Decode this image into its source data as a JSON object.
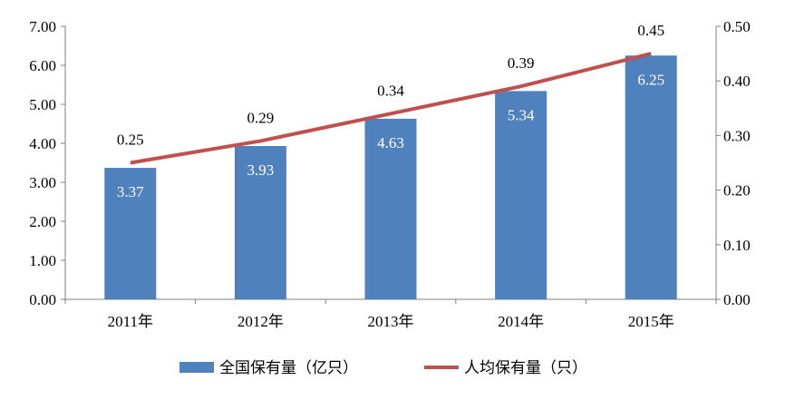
{
  "chart_data": {
    "type": "bar",
    "categories": [
      "2011年",
      "2012年",
      "2013年",
      "2014年",
      "2015年"
    ],
    "series": [
      {
        "name": "全国保有量（亿只）",
        "type": "bar",
        "axis": "left",
        "color": "#4F81BD",
        "values": [
          3.37,
          3.93,
          4.63,
          5.34,
          6.25
        ],
        "labels": [
          "3.37",
          "3.93",
          "4.63",
          "5.34",
          "6.25"
        ]
      },
      {
        "name": "人均保有量（只）",
        "type": "line",
        "axis": "right",
        "color": "#C0504D",
        "values": [
          0.25,
          0.29,
          0.34,
          0.39,
          0.45
        ],
        "labels": [
          "0.25",
          "0.29",
          "0.34",
          "0.39",
          "0.45"
        ]
      }
    ],
    "y_left": {
      "range": [
        0,
        7
      ],
      "ticks": [
        "0.00",
        "1.00",
        "2.00",
        "3.00",
        "4.00",
        "5.00",
        "6.00",
        "7.00"
      ]
    },
    "y_right": {
      "range": [
        0,
        0.5
      ],
      "ticks": [
        "0.00",
        "0.10",
        "0.20",
        "0.30",
        "0.40",
        "0.50"
      ]
    },
    "grid": false,
    "legend_position": "bottom"
  }
}
